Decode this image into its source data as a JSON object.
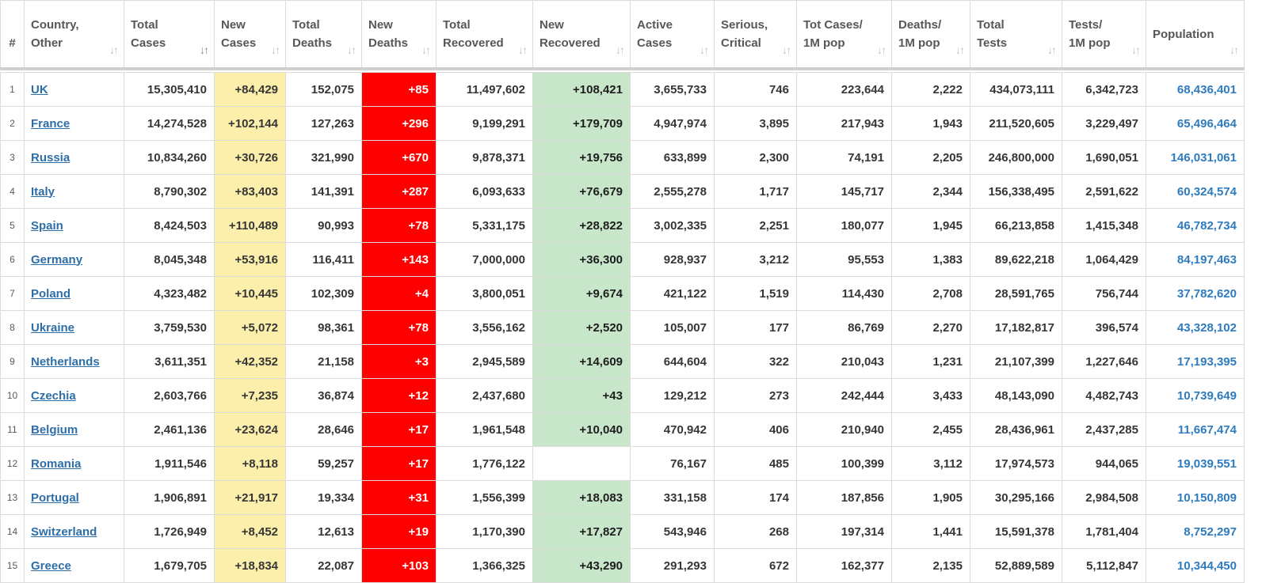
{
  "columns": [
    {
      "key": "idx",
      "label1": "#",
      "label2": ""
    },
    {
      "key": "country",
      "label1": "Country,",
      "label2": "Other"
    },
    {
      "key": "total_cases",
      "label1": "Total",
      "label2": "Cases"
    },
    {
      "key": "new_cases",
      "label1": "New",
      "label2": "Cases"
    },
    {
      "key": "total_deaths",
      "label1": "Total",
      "label2": "Deaths"
    },
    {
      "key": "new_deaths",
      "label1": "New",
      "label2": "Deaths"
    },
    {
      "key": "total_recovered",
      "label1": "Total",
      "label2": "Recovered"
    },
    {
      "key": "new_recovered",
      "label1": "New",
      "label2": "Recovered"
    },
    {
      "key": "active_cases",
      "label1": "Active",
      "label2": "Cases"
    },
    {
      "key": "serious",
      "label1": "Serious,",
      "label2": "Critical"
    },
    {
      "key": "tot_cases_1m",
      "label1": "Tot Cases/",
      "label2": "1M pop"
    },
    {
      "key": "deaths_1m",
      "label1": "Deaths/",
      "label2": "1M pop"
    },
    {
      "key": "total_tests",
      "label1": "Total",
      "label2": "Tests"
    },
    {
      "key": "tests_1m",
      "label1": "Tests/",
      "label2": "1M pop"
    },
    {
      "key": "population",
      "label1": "Population",
      "label2": ""
    }
  ],
  "sort_column": "total_cases",
  "sort_icon": "sort-arrows-icon",
  "colors": {
    "new_cases_bg": "#fcefab",
    "new_deaths_bg": "#ff0000",
    "new_recovered_bg": "#c8e6c9",
    "link": "#2e6ea8",
    "population": "#2e7bbf"
  },
  "rows": [
    {
      "idx": "1",
      "country": "UK",
      "total_cases": "15,305,410",
      "new_cases": "+84,429",
      "total_deaths": "152,075",
      "new_deaths": "+85",
      "total_recovered": "11,497,602",
      "new_recovered": "+108,421",
      "active_cases": "3,655,733",
      "serious": "746",
      "tot_cases_1m": "223,644",
      "deaths_1m": "2,222",
      "total_tests": "434,073,111",
      "tests_1m": "6,342,723",
      "population": "68,436,401"
    },
    {
      "idx": "2",
      "country": "France",
      "total_cases": "14,274,528",
      "new_cases": "+102,144",
      "total_deaths": "127,263",
      "new_deaths": "+296",
      "total_recovered": "9,199,291",
      "new_recovered": "+179,709",
      "active_cases": "4,947,974",
      "serious": "3,895",
      "tot_cases_1m": "217,943",
      "deaths_1m": "1,943",
      "total_tests": "211,520,605",
      "tests_1m": "3,229,497",
      "population": "65,496,464"
    },
    {
      "idx": "3",
      "country": "Russia",
      "total_cases": "10,834,260",
      "new_cases": "+30,726",
      "total_deaths": "321,990",
      "new_deaths": "+670",
      "total_recovered": "9,878,371",
      "new_recovered": "+19,756",
      "active_cases": "633,899",
      "serious": "2,300",
      "tot_cases_1m": "74,191",
      "deaths_1m": "2,205",
      "total_tests": "246,800,000",
      "tests_1m": "1,690,051",
      "population": "146,031,061"
    },
    {
      "idx": "4",
      "country": "Italy",
      "total_cases": "8,790,302",
      "new_cases": "+83,403",
      "total_deaths": "141,391",
      "new_deaths": "+287",
      "total_recovered": "6,093,633",
      "new_recovered": "+76,679",
      "active_cases": "2,555,278",
      "serious": "1,717",
      "tot_cases_1m": "145,717",
      "deaths_1m": "2,344",
      "total_tests": "156,338,495",
      "tests_1m": "2,591,622",
      "population": "60,324,574"
    },
    {
      "idx": "5",
      "country": "Spain",
      "total_cases": "8,424,503",
      "new_cases": "+110,489",
      "total_deaths": "90,993",
      "new_deaths": "+78",
      "total_recovered": "5,331,175",
      "new_recovered": "+28,822",
      "active_cases": "3,002,335",
      "serious": "2,251",
      "tot_cases_1m": "180,077",
      "deaths_1m": "1,945",
      "total_tests": "66,213,858",
      "tests_1m": "1,415,348",
      "population": "46,782,734"
    },
    {
      "idx": "6",
      "country": "Germany",
      "total_cases": "8,045,348",
      "new_cases": "+53,916",
      "total_deaths": "116,411",
      "new_deaths": "+143",
      "total_recovered": "7,000,000",
      "new_recovered": "+36,300",
      "active_cases": "928,937",
      "serious": "3,212",
      "tot_cases_1m": "95,553",
      "deaths_1m": "1,383",
      "total_tests": "89,622,218",
      "tests_1m": "1,064,429",
      "population": "84,197,463"
    },
    {
      "idx": "7",
      "country": "Poland",
      "total_cases": "4,323,482",
      "new_cases": "+10,445",
      "total_deaths": "102,309",
      "new_deaths": "+4",
      "total_recovered": "3,800,051",
      "new_recovered": "+9,674",
      "active_cases": "421,122",
      "serious": "1,519",
      "tot_cases_1m": "114,430",
      "deaths_1m": "2,708",
      "total_tests": "28,591,765",
      "tests_1m": "756,744",
      "population": "37,782,620"
    },
    {
      "idx": "8",
      "country": "Ukraine",
      "total_cases": "3,759,530",
      "new_cases": "+5,072",
      "total_deaths": "98,361",
      "new_deaths": "+78",
      "total_recovered": "3,556,162",
      "new_recovered": "+2,520",
      "active_cases": "105,007",
      "serious": "177",
      "tot_cases_1m": "86,769",
      "deaths_1m": "2,270",
      "total_tests": "17,182,817",
      "tests_1m": "396,574",
      "population": "43,328,102"
    },
    {
      "idx": "9",
      "country": "Netherlands",
      "total_cases": "3,611,351",
      "new_cases": "+42,352",
      "total_deaths": "21,158",
      "new_deaths": "+3",
      "total_recovered": "2,945,589",
      "new_recovered": "+14,609",
      "active_cases": "644,604",
      "serious": "322",
      "tot_cases_1m": "210,043",
      "deaths_1m": "1,231",
      "total_tests": "21,107,399",
      "tests_1m": "1,227,646",
      "population": "17,193,395"
    },
    {
      "idx": "10",
      "country": "Czechia",
      "total_cases": "2,603,766",
      "new_cases": "+7,235",
      "total_deaths": "36,874",
      "new_deaths": "+12",
      "total_recovered": "2,437,680",
      "new_recovered": "+43",
      "active_cases": "129,212",
      "serious": "273",
      "tot_cases_1m": "242,444",
      "deaths_1m": "3,433",
      "total_tests": "48,143,090",
      "tests_1m": "4,482,743",
      "population": "10,739,649"
    },
    {
      "idx": "11",
      "country": "Belgium",
      "total_cases": "2,461,136",
      "new_cases": "+23,624",
      "total_deaths": "28,646",
      "new_deaths": "+17",
      "total_recovered": "1,961,548",
      "new_recovered": "+10,040",
      "active_cases": "470,942",
      "serious": "406",
      "tot_cases_1m": "210,940",
      "deaths_1m": "2,455",
      "total_tests": "28,436,961",
      "tests_1m": "2,437,285",
      "population": "11,667,474"
    },
    {
      "idx": "12",
      "country": "Romania",
      "total_cases": "1,911,546",
      "new_cases": "+8,118",
      "total_deaths": "59,257",
      "new_deaths": "+17",
      "total_recovered": "1,776,122",
      "new_recovered": "",
      "active_cases": "76,167",
      "serious": "485",
      "tot_cases_1m": "100,399",
      "deaths_1m": "3,112",
      "total_tests": "17,974,573",
      "tests_1m": "944,065",
      "population": "19,039,551"
    },
    {
      "idx": "13",
      "country": "Portugal",
      "total_cases": "1,906,891",
      "new_cases": "+21,917",
      "total_deaths": "19,334",
      "new_deaths": "+31",
      "total_recovered": "1,556,399",
      "new_recovered": "+18,083",
      "active_cases": "331,158",
      "serious": "174",
      "tot_cases_1m": "187,856",
      "deaths_1m": "1,905",
      "total_tests": "30,295,166",
      "tests_1m": "2,984,508",
      "population": "10,150,809"
    },
    {
      "idx": "14",
      "country": "Switzerland",
      "total_cases": "1,726,949",
      "new_cases": "+8,452",
      "total_deaths": "12,613",
      "new_deaths": "+19",
      "total_recovered": "1,170,390",
      "new_recovered": "+17,827",
      "active_cases": "543,946",
      "serious": "268",
      "tot_cases_1m": "197,314",
      "deaths_1m": "1,441",
      "total_tests": "15,591,378",
      "tests_1m": "1,781,404",
      "population": "8,752,297"
    },
    {
      "idx": "15",
      "country": "Greece",
      "total_cases": "1,679,705",
      "new_cases": "+18,834",
      "total_deaths": "22,087",
      "new_deaths": "+103",
      "total_recovered": "1,366,325",
      "new_recovered": "+43,290",
      "active_cases": "291,293",
      "serious": "672",
      "tot_cases_1m": "162,377",
      "deaths_1m": "2,135",
      "total_tests": "52,889,589",
      "tests_1m": "5,112,847",
      "population": "10,344,450"
    }
  ]
}
